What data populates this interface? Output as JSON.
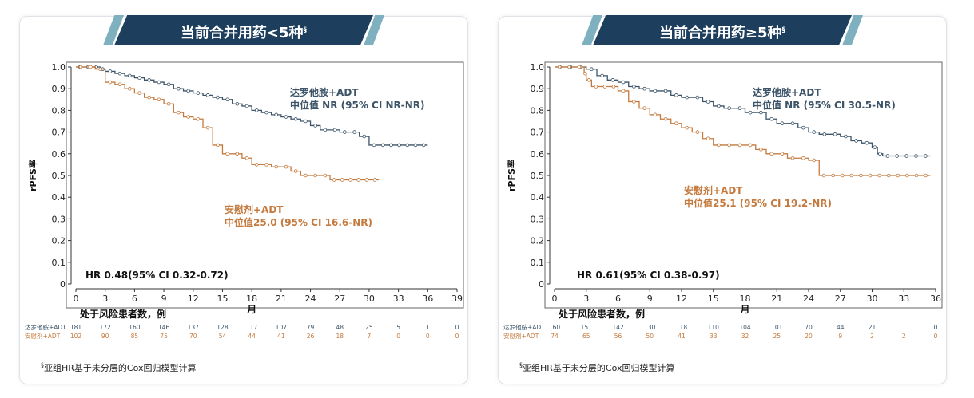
{
  "panels": [
    {
      "title": "当前合并用药<5种",
      "title_mark": "§",
      "footnote_mark": "§",
      "footnote": "亚组HR基于未分层的Cox回归模型计算",
      "chart_data": {
        "type": "line",
        "subtype": "kaplan-meier",
        "ylabel": "rPFS率",
        "xlabel": "月",
        "x_ticks": [
          0,
          3,
          6,
          9,
          12,
          15,
          18,
          21,
          24,
          27,
          30,
          33,
          36,
          39
        ],
        "y_ticks": [
          "0",
          "0.1",
          "0.2",
          "0.3",
          "0.4",
          "0.5",
          "0.6",
          "0.7",
          "0.8",
          "0.9",
          "1.0"
        ],
        "xlim": [
          0,
          39
        ],
        "ylim": [
          0,
          1.0
        ],
        "hr_text": "HR 0.48(95% CI 0.32-0.72)",
        "series": [
          {
            "name": "达罗他胺+ADT",
            "median": "中位值 NR (95% CI NR-NR)",
            "color": "#3d5468",
            "points": [
              [
                0,
                1.0
              ],
              [
                2.5,
                0.99
              ],
              [
                3,
                0.98
              ],
              [
                4,
                0.97
              ],
              [
                5,
                0.96
              ],
              [
                6,
                0.95
              ],
              [
                7,
                0.94
              ],
              [
                8,
                0.93
              ],
              [
                9,
                0.92
              ],
              [
                10,
                0.9
              ],
              [
                11,
                0.89
              ],
              [
                12,
                0.88
              ],
              [
                13,
                0.87
              ],
              [
                14,
                0.86
              ],
              [
                15,
                0.85
              ],
              [
                16,
                0.83
              ],
              [
                17,
                0.82
              ],
              [
                18,
                0.8
              ],
              [
                19,
                0.79
              ],
              [
                20,
                0.78
              ],
              [
                21,
                0.77
              ],
              [
                22,
                0.76
              ],
              [
                23,
                0.75
              ],
              [
                24,
                0.73
              ],
              [
                25,
                0.71
              ],
              [
                27,
                0.7
              ],
              [
                28,
                0.7
              ],
              [
                29,
                0.68
              ],
              [
                30,
                0.64
              ],
              [
                31,
                0.64
              ],
              [
                36,
                0.64
              ]
            ]
          },
          {
            "name": "安慰剂+ADT",
            "median": "中位值25.0 (95% CI 16.6-NR)",
            "color": "#c47a3e",
            "points": [
              [
                0,
                1.0
              ],
              [
                2,
                0.99
              ],
              [
                3,
                0.93
              ],
              [
                4,
                0.92
              ],
              [
                5,
                0.9
              ],
              [
                6,
                0.88
              ],
              [
                7,
                0.86
              ],
              [
                8,
                0.85
              ],
              [
                9,
                0.83
              ],
              [
                10,
                0.79
              ],
              [
                11,
                0.77
              ],
              [
                12,
                0.76
              ],
              [
                13,
                0.72
              ],
              [
                14,
                0.64
              ],
              [
                15,
                0.6
              ],
              [
                17,
                0.58
              ],
              [
                18,
                0.55
              ],
              [
                20,
                0.54
              ],
              [
                22,
                0.52
              ],
              [
                23,
                0.5
              ],
              [
                25,
                0.5
              ],
              [
                26,
                0.48
              ],
              [
                31,
                0.48
              ]
            ]
          }
        ]
      },
      "risk_table": {
        "title": "处于风险患者数，例",
        "rows": [
          {
            "label": "达罗他胺+ADT",
            "color": "#3d5468",
            "values": [
              "181",
              "172",
              "160",
              "146",
              "137",
              "128",
              "117",
              "107",
              "79",
              "48",
              "25",
              "5",
              "1",
              "0"
            ]
          },
          {
            "label": "安慰剂+ADT",
            "color": "#c47a3e",
            "values": [
              "102",
              "90",
              "85",
              "75",
              "70",
              "54",
              "44",
              "41",
              "26",
              "18",
              "7",
              "0",
              "0",
              "0"
            ]
          }
        ]
      }
    },
    {
      "title": "当前合并用药≥5种",
      "title_mark": "§",
      "footnote_mark": "§",
      "footnote": "亚组HR基于未分层的Cox回归模型计算",
      "chart_data": {
        "type": "line",
        "subtype": "kaplan-meier",
        "ylabel": "rPFS率",
        "xlabel": "月",
        "x_ticks": [
          0,
          3,
          6,
          9,
          12,
          15,
          18,
          21,
          24,
          27,
          30,
          33,
          36
        ],
        "y_ticks": [
          "0",
          "0.1",
          "0.2",
          "0.3",
          "0.4",
          "0.5",
          "0.6",
          "0.7",
          "0.8",
          "0.9",
          "1.0"
        ],
        "xlim": [
          0,
          36
        ],
        "ylim": [
          0,
          1.0
        ],
        "hr_text": "HR 0.61(95% CI 0.38-0.97)",
        "series": [
          {
            "name": "达罗他胺+ADT",
            "median": "中位值 NR (95% CI 30.5-NR)",
            "color": "#3d5468",
            "points": [
              [
                0,
                1.0
              ],
              [
                3,
                0.99
              ],
              [
                4,
                0.96
              ],
              [
                5,
                0.94
              ],
              [
                6,
                0.93
              ],
              [
                7,
                0.91
              ],
              [
                8,
                0.9
              ],
              [
                9,
                0.89
              ],
              [
                11,
                0.87
              ],
              [
                12,
                0.86
              ],
              [
                14,
                0.84
              ],
              [
                15,
                0.82
              ],
              [
                16,
                0.81
              ],
              [
                18,
                0.79
              ],
              [
                20,
                0.76
              ],
              [
                21,
                0.74
              ],
              [
                23,
                0.72
              ],
              [
                24,
                0.7
              ],
              [
                25,
                0.69
              ],
              [
                27,
                0.68
              ],
              [
                28,
                0.66
              ],
              [
                29,
                0.65
              ],
              [
                30,
                0.63
              ],
              [
                30.5,
                0.6
              ],
              [
                31,
                0.59
              ],
              [
                35.5,
                0.59
              ]
            ]
          },
          {
            "name": "安慰剂+ADT",
            "median": "中位值25.1 (95% CI 19.2-NR)",
            "color": "#c47a3e",
            "points": [
              [
                0,
                1.0
              ],
              [
                2.8,
                0.97
              ],
              [
                3,
                0.94
              ],
              [
                3.5,
                0.91
              ],
              [
                6,
                0.89
              ],
              [
                7,
                0.84
              ],
              [
                8,
                0.81
              ],
              [
                9,
                0.78
              ],
              [
                10,
                0.76
              ],
              [
                11,
                0.74
              ],
              [
                12,
                0.72
              ],
              [
                13,
                0.7
              ],
              [
                14,
                0.67
              ],
              [
                15,
                0.64
              ],
              [
                19,
                0.62
              ],
              [
                20,
                0.6
              ],
              [
                22,
                0.58
              ],
              [
                24,
                0.57
              ],
              [
                25,
                0.5
              ],
              [
                35.5,
                0.5
              ]
            ]
          }
        ]
      },
      "risk_table": {
        "title": "处于风险患者数，例",
        "rows": [
          {
            "label": "达罗他胺+ADT",
            "color": "#3d5468",
            "values": [
              "160",
              "151",
              "142",
              "130",
              "118",
              "110",
              "104",
              "101",
              "70",
              "44",
              "21",
              "1",
              "0"
            ]
          },
          {
            "label": "安慰剂+ADT",
            "color": "#c47a3e",
            "values": [
              "74",
              "65",
              "56",
              "50",
              "41",
              "33",
              "32",
              "25",
              "20",
              "9",
              "2",
              "2",
              "0"
            ]
          }
        ]
      }
    }
  ]
}
